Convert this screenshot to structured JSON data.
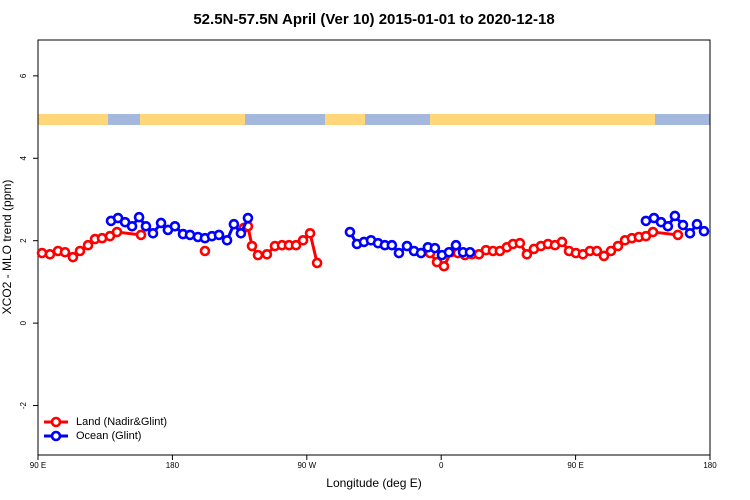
{
  "chart_data": {
    "type": "line",
    "title": "52.5N-57.5N April (Ver 10)   2015-01-01 to 2020-12-18",
    "xlabel": "Longitude (deg E)",
    "ylabel": "XCO2 - MLO trend (ppm)",
    "xlim": [
      -270,
      180
    ],
    "ylim": [
      -3.2,
      6.87
    ],
    "xticks": [
      {
        "value": -270,
        "label": "90 E"
      },
      {
        "value": -180,
        "label": "180"
      },
      {
        "value": -90,
        "label": "90 W"
      },
      0,
      {
        "value": 90,
        "label": "90 E"
      },
      180
    ],
    "yticks": [
      -2,
      0,
      2,
      4,
      6
    ],
    "legend": "bottom-left",
    "series": [
      {
        "name": "Land (Nadir&Glint)",
        "color": "#ff0000",
        "x": [
          -267.3,
          -262,
          -256.6,
          -251.9,
          -246.6,
          -241.9,
          -236.5,
          -231.8,
          -227.1,
          -221.8,
          -217.1,
          -201,
          -190,
          -158.2,
          -150,
          -132.1,
          -129.4,
          -126.7,
          -122.7,
          -116.7,
          -111.3,
          -106.6,
          -101.9,
          -97.2,
          -92.5,
          -87.8,
          -83.1,
          -30,
          -7.5,
          -2.8,
          1.9,
          6.5,
          11.2,
          15.9,
          20.6,
          25.3,
          30,
          34.7,
          39.3,
          44,
          48.1,
          52.7,
          57.4,
          62.1,
          66.8,
          71.5,
          76.2,
          80.9,
          85.6,
          90.2,
          94.9,
          99.6,
          104.3,
          109,
          113.7,
          118.4,
          123.1,
          127.7,
          132.4,
          137.1,
          141.8,
          158.5
        ],
        "values": [
          1.7,
          1.67,
          1.75,
          1.72,
          1.6,
          1.75,
          1.89,
          2.04,
          2.06,
          2.11,
          2.21,
          2.14,
          null,
          1.75,
          null,
          2.31,
          2.35,
          1.87,
          1.65,
          1.67,
          1.87,
          1.89,
          1.89,
          1.89,
          2.01,
          2.18,
          1.46,
          null,
          1.7,
          1.48,
          1.38,
          1.72,
          1.7,
          1.65,
          1.67,
          1.67,
          1.77,
          1.75,
          1.75,
          1.84,
          1.92,
          1.94,
          1.67,
          1.8,
          1.87,
          1.92,
          1.89,
          1.97,
          1.75,
          1.7,
          1.67,
          1.75,
          1.75,
          1.63,
          1.75,
          1.87,
          2.01,
          2.06,
          2.09,
          2.11,
          2.21,
          2.14
        ]
      },
      {
        "name": "Ocean (Glint)",
        "color": "#0000ff",
        "x": [
          -221.1,
          -216.4,
          -211.7,
          -207,
          -202.3,
          -197.7,
          -193,
          -187.6,
          -183,
          -178.3,
          -172.9,
          -168.2,
          -162.9,
          -158.2,
          -153.5,
          -148.8,
          -143.4,
          -138.8,
          -134.1,
          -129.4,
          -100,
          -61.1,
          -56.4,
          -51.7,
          -47,
          -42.3,
          -37.7,
          -33,
          -28.3,
          -22.9,
          -18.2,
          -13.5,
          -8.9,
          -4.2,
          0.5,
          5.2,
          9.9,
          14.6,
          19.3,
          80,
          137.1,
          142.5,
          147.2,
          151.8,
          156.5,
          161.9,
          166.6,
          171.3,
          176
        ],
        "values": [
          2.48,
          2.55,
          2.45,
          2.35,
          2.57,
          2.35,
          2.18,
          2.43,
          2.26,
          2.35,
          2.16,
          2.14,
          2.09,
          2.06,
          2.11,
          2.14,
          2.01,
          2.4,
          2.18,
          2.55,
          null,
          2.21,
          1.92,
          1.97,
          2.01,
          1.94,
          1.89,
          1.89,
          1.7,
          1.87,
          1.75,
          1.7,
          1.84,
          1.82,
          1.65,
          1.72,
          1.89,
          1.72,
          1.72,
          null,
          2.48,
          2.55,
          2.45,
          2.35,
          2.6,
          2.38,
          2.18,
          2.4,
          2.23
        ]
      }
    ]
  }
}
